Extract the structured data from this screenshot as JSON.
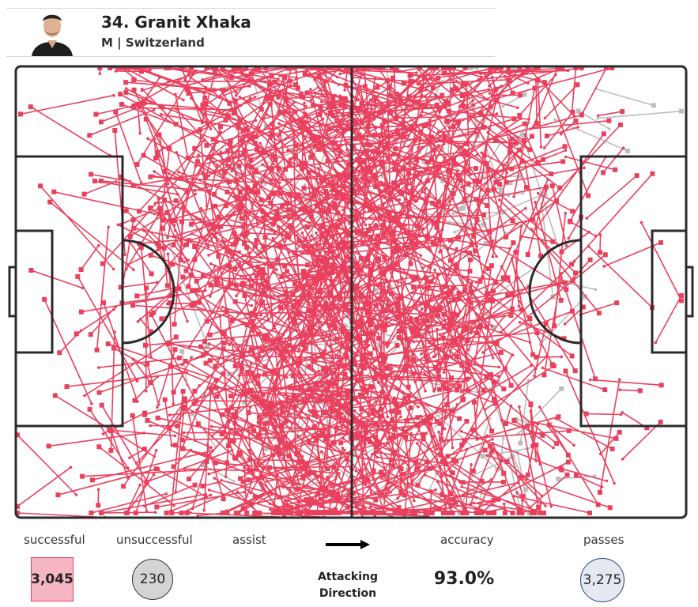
{
  "header": {
    "player_name": "34. Granit Xhaka",
    "player_meta": "M | Switzerland"
  },
  "legend": {
    "successful_label": "successful",
    "unsuccessful_label": "unsuccessful",
    "assist_label": "assist",
    "accuracy_label": "accuracy",
    "passes_label": "passes",
    "attacking_direction_label": "Attacking Direction"
  },
  "stats": {
    "successful": "3,045",
    "unsuccessful": "230",
    "accuracy": "93.0%",
    "passes": "3,275"
  },
  "colors": {
    "successful": "#e9405e",
    "unsuccessful": "#bdbdbd",
    "pitch_lines": "#2b2b2b",
    "passes_circle_border": "#2b3f7a"
  },
  "chart_data": {
    "type": "scatter",
    "description_of_marks": "pass map: each pass is a line from origin to end, with a square marker at the end point",
    "series": [
      {
        "name": "successful",
        "count": 3045,
        "color": "#e9405e"
      },
      {
        "name": "unsuccessful",
        "count": 230,
        "color": "#bdbdbd"
      }
    ],
    "accuracy_percent": 93.0,
    "total_passes": 3275
  }
}
